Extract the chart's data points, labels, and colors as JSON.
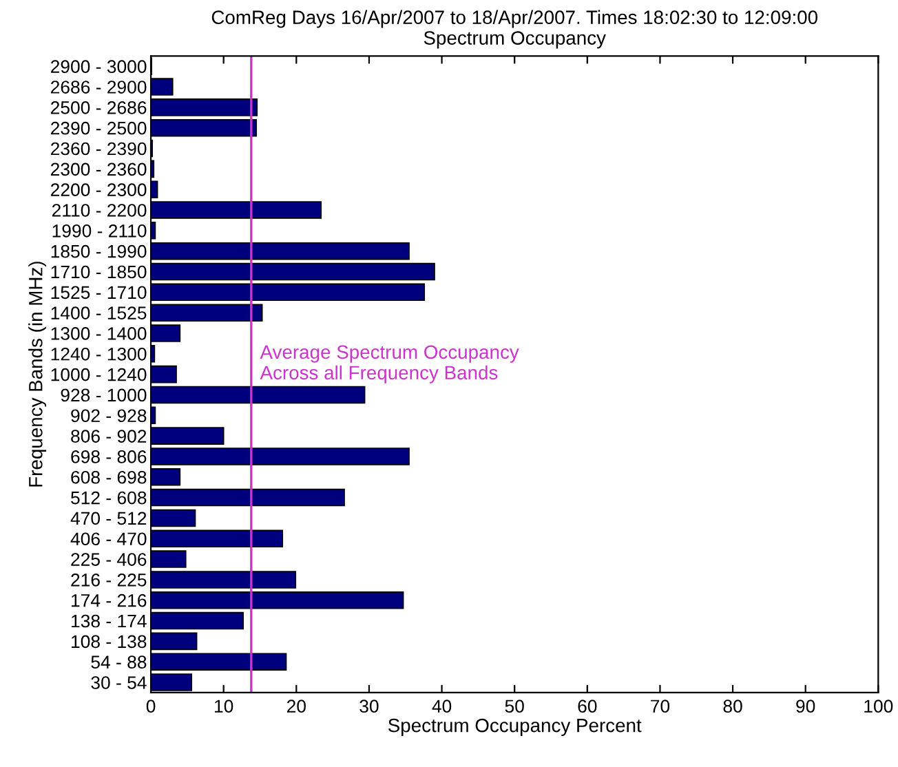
{
  "chart_data": {
    "type": "bar",
    "orientation": "horizontal",
    "title": "ComReg Days 16/Apr/2007 to 18/Apr/2007. Times 18:02:30 to 12:09:00\nSpectrum Occupancy",
    "xlabel": "Spectrum Occupancy Percent",
    "ylabel": "Frequency Bands (in MHz)",
    "categories": [
      "2900 - 3000",
      "2686 - 2900",
      "2500 - 2686",
      "2390 - 2500",
      "2360 - 2390",
      "2300 - 2360",
      "2200 - 2300",
      "2110 - 2200",
      "1990 - 2110",
      "1850 - 1990",
      "1710 - 1850",
      "1525 - 1710",
      "1400 - 1525",
      "1300 - 1400",
      "1240 - 1300",
      "1000 - 1240",
      "928 - 1000",
      "902 - 928",
      "806 - 902",
      "698 - 806",
      "608 - 698",
      "512 - 608",
      "470 - 512",
      "406 - 470",
      "225 - 406",
      "216 - 225",
      "174 - 216",
      "138 - 174",
      "108 - 138",
      "54 - 88",
      "30 - 54"
    ],
    "values": [
      0.1,
      3.0,
      14.6,
      14.5,
      0.2,
      0.4,
      0.9,
      23.4,
      0.6,
      35.5,
      39.0,
      37.6,
      15.3,
      4.0,
      0.5,
      3.5,
      29.4,
      0.6,
      10.0,
      35.5,
      4.0,
      26.6,
      6.1,
      18.1,
      4.8,
      19.9,
      34.7,
      12.7,
      6.3,
      18.6,
      5.6
    ],
    "color": "#00007f",
    "xlim": [
      0,
      100
    ],
    "xticks": [
      0,
      10,
      20,
      30,
      40,
      50,
      60,
      70,
      80,
      90,
      100
    ],
    "ref_lines": [
      {
        "axis": "x",
        "value": 13.8,
        "label": "Average Spectrum Occupancy\nAcross all Frequency Bands",
        "color": "#cc33cc"
      }
    ],
    "grid": false,
    "legend": false
  }
}
